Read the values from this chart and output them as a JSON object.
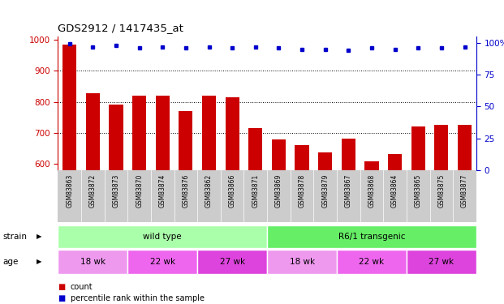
{
  "title": "GDS2912 / 1417435_at",
  "samples": [
    "GSM83863",
    "GSM83872",
    "GSM83873",
    "GSM83870",
    "GSM83874",
    "GSM83876",
    "GSM83862",
    "GSM83866",
    "GSM83871",
    "GSM83869",
    "GSM83878",
    "GSM83879",
    "GSM83867",
    "GSM83868",
    "GSM83864",
    "GSM83865",
    "GSM83875",
    "GSM83877"
  ],
  "counts": [
    985,
    827,
    790,
    820,
    820,
    769,
    820,
    815,
    715,
    680,
    662,
    637,
    681,
    609,
    632,
    721,
    726,
    726
  ],
  "percentiles": [
    99,
    97,
    98,
    96,
    97,
    96,
    97,
    96,
    97,
    96,
    95,
    95,
    94,
    96,
    95,
    96,
    96,
    97
  ],
  "ylim_left": [
    580,
    1010
  ],
  "ylim_right": [
    0,
    105
  ],
  "bar_color": "#cc0000",
  "dot_color": "#0000cc",
  "strain_groups": [
    {
      "label": "wild type",
      "start": 0,
      "end": 9,
      "color": "#aaffaa"
    },
    {
      "label": "R6/1 transgenic",
      "start": 9,
      "end": 18,
      "color": "#66ee66"
    }
  ],
  "age_groups": [
    {
      "label": "18 wk",
      "start": 0,
      "end": 3,
      "color": "#ee99ee"
    },
    {
      "label": "22 wk",
      "start": 3,
      "end": 6,
      "color": "#ee66ee"
    },
    {
      "label": "27 wk",
      "start": 6,
      "end": 9,
      "color": "#dd44dd"
    },
    {
      "label": "18 wk",
      "start": 9,
      "end": 12,
      "color": "#ee99ee"
    },
    {
      "label": "22 wk",
      "start": 12,
      "end": 15,
      "color": "#ee66ee"
    },
    {
      "label": "27 wk",
      "start": 15,
      "end": 18,
      "color": "#dd44dd"
    }
  ],
  "axis_label_color_left": "#cc0000",
  "tick_label_color_right": "#0000cc",
  "legend_count_color": "#cc0000",
  "legend_dot_color": "#0000cc"
}
